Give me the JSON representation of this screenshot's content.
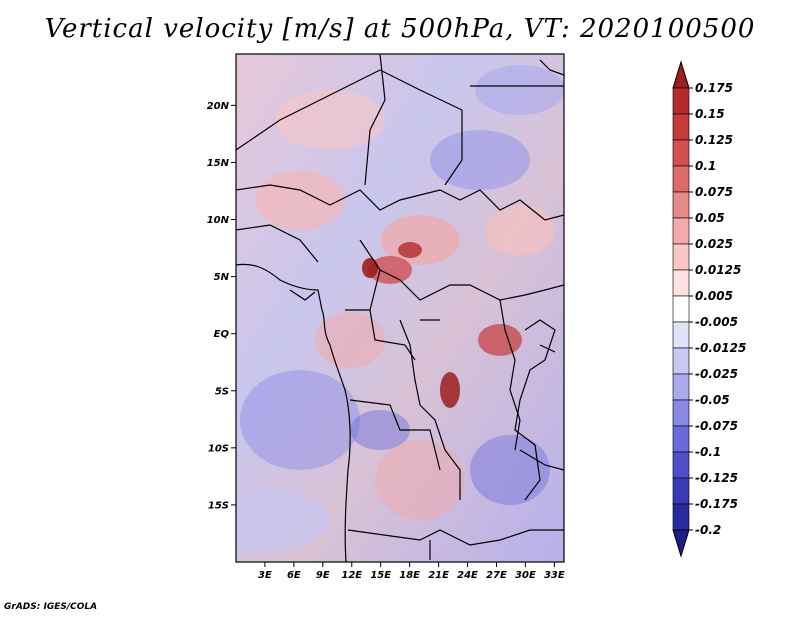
{
  "title": "Vertical velocity [m/s] at 500hPa, VT: 2020100500",
  "footer": "GrADS: IGES/COLA",
  "map": {
    "lat_labels": [
      "20N",
      "15N",
      "10N",
      "5N",
      "EQ",
      "5S",
      "10S",
      "15S"
    ],
    "lat_values": [
      20,
      15,
      10,
      5,
      0,
      -5,
      -10,
      -15
    ],
    "lon_labels": [
      "3E",
      "6E",
      "9E",
      "12E",
      "15E",
      "18E",
      "21E",
      "24E",
      "27E",
      "30E",
      "33E"
    ],
    "lon_values": [
      3,
      6,
      9,
      12,
      15,
      18,
      21,
      24,
      27,
      30,
      33
    ],
    "lat_range": [
      -20,
      24.5
    ],
    "lon_range": [
      0,
      34
    ]
  },
  "colorbar": {
    "labels": [
      "0.175",
      "0.15",
      "0.125",
      "0.1",
      "0.075",
      "0.05",
      "0.025",
      "0.0125",
      "0.005",
      "-0.005",
      "-0.0125",
      "-0.025",
      "-0.05",
      "-0.075",
      "-0.1",
      "-0.125",
      "-0.175",
      "-0.2"
    ],
    "colors": [
      "#9c1e1e",
      "#b32b2b",
      "#c63a3a",
      "#d45050",
      "#df6a6a",
      "#e98a8a",
      "#f2aaaa",
      "#f8c8c8",
      "#fce2e2",
      "#ffffff",
      "#e2e2f8",
      "#c8c8f2",
      "#aaaaec",
      "#8a8ae6",
      "#6a6adc",
      "#4f4fcc",
      "#3a3ab8",
      "#2a2aa0",
      "#1e1e8a"
    ]
  }
}
